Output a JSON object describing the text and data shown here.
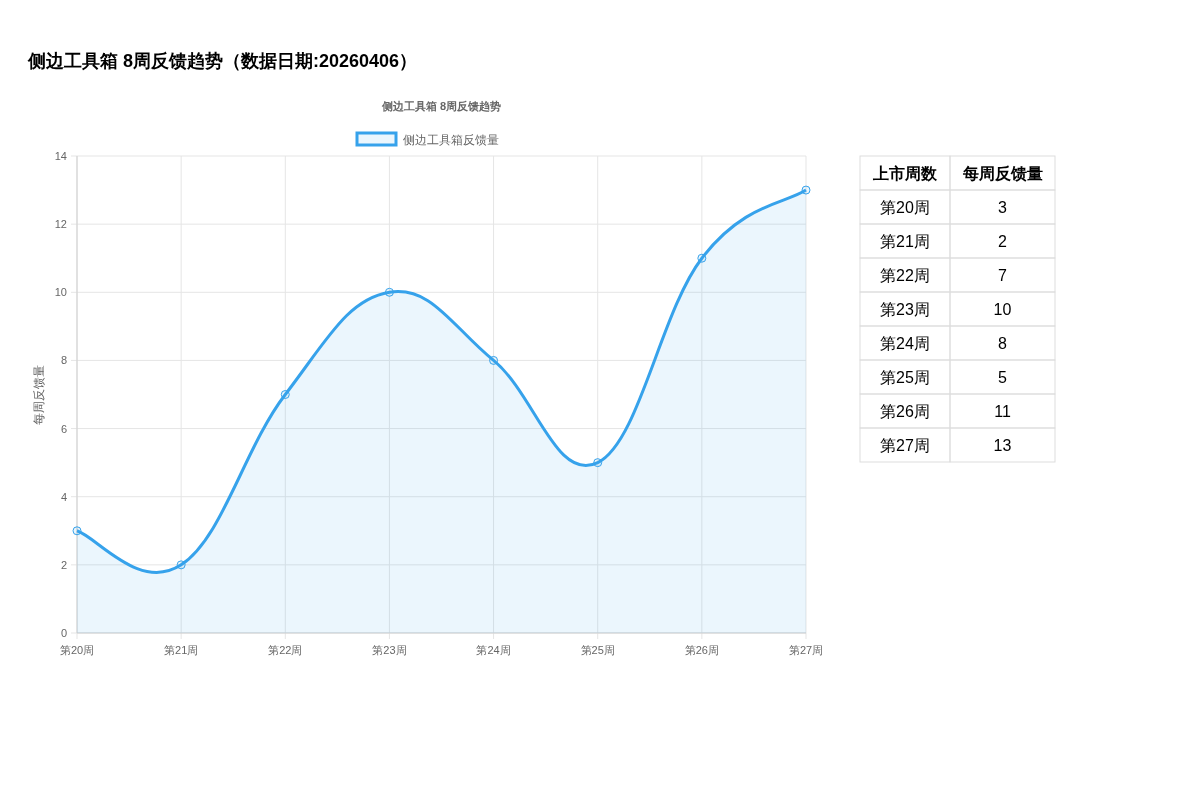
{
  "chart_data": [
    {
      "type": "area",
      "title": "侧边工具箱 8周反馈趋势（数据日期:20260406）",
      "subtitle": "侧边工具箱 8周反馈趋势",
      "ylabel": "每周反馈量",
      "categories": [
        "第20周",
        "第21周",
        "第22周",
        "第23周",
        "第24周",
        "第25周",
        "第26周",
        "第27周"
      ],
      "series": [
        {
          "name": "侧边工具箱反馈量",
          "color": "#36a2eb",
          "values": [
            3,
            2,
            7,
            10,
            8,
            5,
            11,
            13
          ]
        }
      ],
      "ylim": [
        0,
        14
      ],
      "yticks": [
        0,
        2,
        4,
        6,
        8,
        10,
        12,
        14
      ],
      "grid": true,
      "legend": "top",
      "marker": "circle"
    },
    {
      "type": "other",
      "annotations": [
        "上市周数",
        "每周反馈量",
        "第20周",
        "3",
        "第21周",
        "2",
        "第22周",
        "7",
        "第23周",
        "10",
        "第24周",
        "8",
        "第25周",
        "5",
        "第26周",
        "11",
        "第27周",
        "13"
      ]
    }
  ]
}
